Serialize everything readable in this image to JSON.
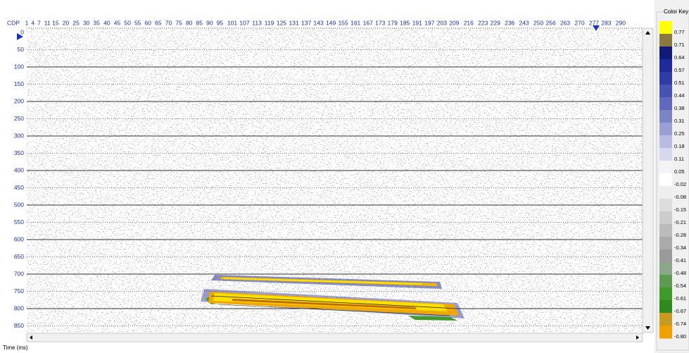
{
  "header": {
    "cdp_label": "CDP",
    "cdp_ticks": [
      1,
      4,
      7,
      11,
      15,
      20,
      25,
      30,
      35,
      40,
      45,
      50,
      55,
      60,
      65,
      70,
      75,
      80,
      85,
      90,
      95,
      101,
      107,
      113,
      119,
      125,
      131,
      137,
      143,
      149,
      155,
      161,
      167,
      173,
      179,
      185,
      191,
      197,
      203,
      209,
      216,
      223,
      229,
      236,
      243,
      250,
      256,
      263,
      270,
      277,
      283,
      290
    ]
  },
  "time_axis": {
    "ticks": [
      0,
      50,
      100,
      150,
      200,
      250,
      300,
      350,
      400,
      450,
      500,
      550,
      600,
      650,
      700,
      750,
      800,
      850
    ],
    "title": "Time (ms)"
  },
  "color_key": {
    "title": "Color Key",
    "labels": [
      "0.77",
      "0.71",
      "0.64",
      "0.57",
      "0.51",
      "0.44",
      "0.38",
      "0.31",
      "0.25",
      "0.18",
      "0.11",
      "0.05",
      "-0.02",
      "-0.08",
      "-0.15",
      "-0.21",
      "-0.28",
      "-0.34",
      "-0.41",
      "-0.48",
      "-0.54",
      "-0.61",
      "-0.67",
      "-0.74",
      "-0.80"
    ]
  }
}
